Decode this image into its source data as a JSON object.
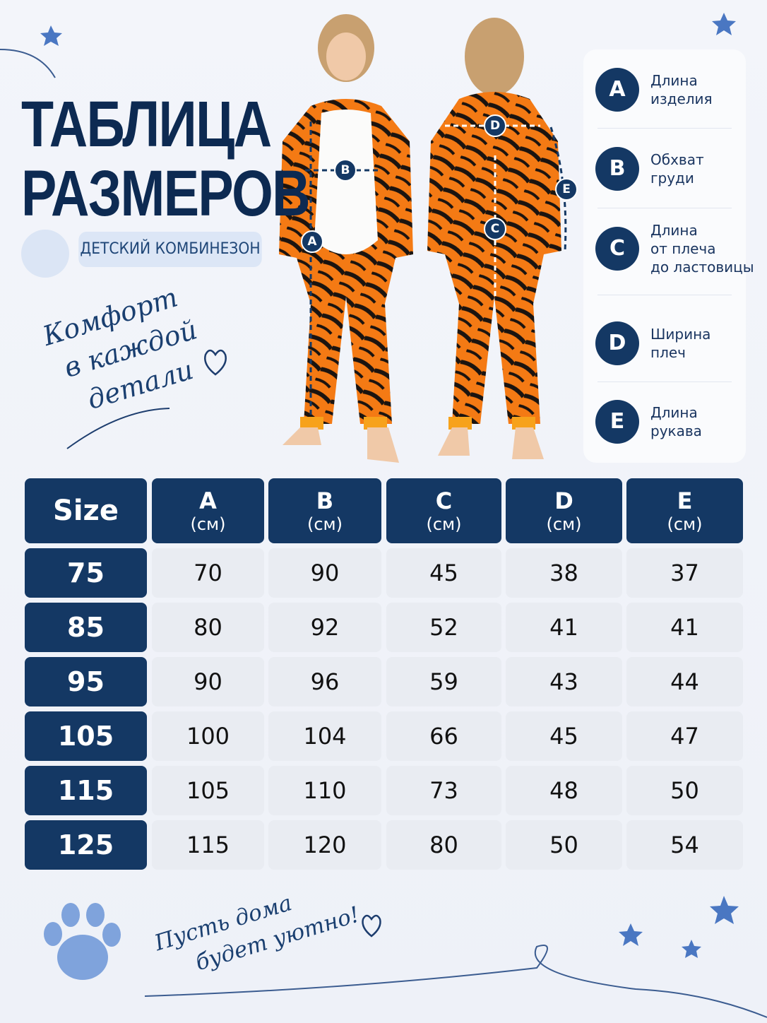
{
  "header": {
    "title": [
      "ТАБЛИЦА",
      "РАЗМЕРОВ"
    ],
    "badge": "ДЕТСКИЙ КОМБИНЕЗОН",
    "tagline": [
      "Комфорт",
      "в каждой",
      "детали"
    ]
  },
  "figures": {
    "front": [
      "B",
      "A"
    ],
    "back": [
      "D",
      "C",
      "E"
    ]
  },
  "legend": [
    {
      "letter": "A",
      "lines": [
        "Длина",
        "изделия"
      ]
    },
    {
      "letter": "B",
      "lines": [
        "Обхват",
        "груди"
      ]
    },
    {
      "letter": "C",
      "lines": [
        "Длина",
        "от плеча",
        "до ластовицы"
      ]
    },
    {
      "letter": "D",
      "lines": [
        "Ширина",
        "плеч"
      ]
    },
    {
      "letter": "E",
      "lines": [
        "Длина",
        "рукава"
      ]
    }
  ],
  "table": {
    "header": [
      {
        "label": "Size"
      },
      {
        "label": "A",
        "unit": "(см)"
      },
      {
        "label": "B",
        "unit": "(см)"
      },
      {
        "label": "C",
        "unit": "(см)"
      },
      {
        "label": "D",
        "unit": "(см)"
      },
      {
        "label": "E",
        "unit": "(см)"
      }
    ],
    "rows": [
      [
        75,
        70,
        90,
        45,
        38,
        37
      ],
      [
        85,
        80,
        92,
        52,
        41,
        41
      ],
      [
        95,
        90,
        96,
        59,
        43,
        44
      ],
      [
        105,
        100,
        104,
        66,
        45,
        47
      ],
      [
        115,
        105,
        110,
        73,
        48,
        50
      ],
      [
        125,
        115,
        120,
        80,
        50,
        54
      ]
    ]
  },
  "footer": [
    "Пусть дома",
    "будет уютно!"
  ]
}
